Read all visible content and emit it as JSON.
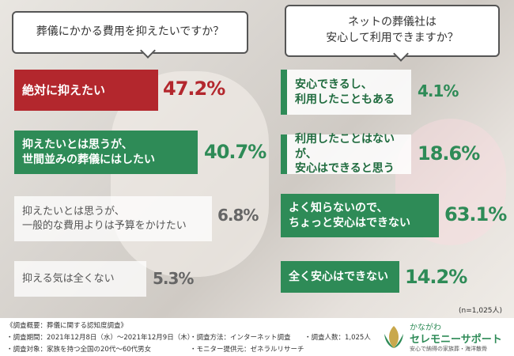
{
  "left": {
    "question": "葬儀にかかる費用を抑えたいですか？",
    "items": [
      {
        "label": "絶対に抑えたい",
        "value": "47.2%"
      },
      {
        "label": "抑えたいとは思うが、\n世間並みの葬儀にはしたい",
        "value": "40.7%"
      },
      {
        "label": "抑えたいとは思うが、\n一般的な費用よりは予算をかけたい",
        "value": "6.8%"
      },
      {
        "label": "抑える気は全くない",
        "value": "5.3%"
      }
    ]
  },
  "right": {
    "question": "ネットの葬儀社は\n安心して利用できますか？",
    "items": [
      {
        "label": "安心できるし、\n利用したこともある",
        "value": "4.1%"
      },
      {
        "label": "利用したことはないが、\n安心はできると思う",
        "value": "18.6%"
      },
      {
        "label": "よく知らないので、\nちょっと安心はできない",
        "value": "63.1%"
      },
      {
        "label": "全く安心はできない",
        "value": "14.2%"
      }
    ]
  },
  "sample": "(n=1,025人)",
  "footer": {
    "heading": "《調査概要：葬儀に関する認知度調査》",
    "period": "・調査期間：2021年12月8日（水）〜2021年12月9日（木）",
    "target": "・調査対象：家族を持つ全国の20代〜60代男女",
    "method": "・調査方法：インターネット調査",
    "provider": "・モニター提供元：ゼネラルリサーチ",
    "count": "・調査人数：1,025人",
    "logo_top": "かながわ",
    "logo_name": "セレモニーサポート",
    "logo_sub": "安心で納得の家族葬・海洋散骨"
  }
}
